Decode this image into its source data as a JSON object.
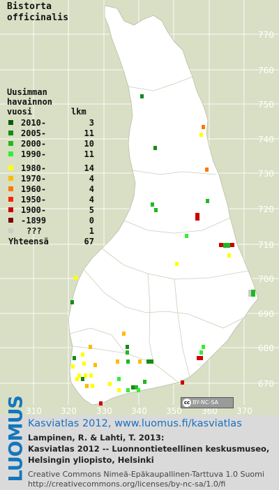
{
  "title": [
    "Bistorta",
    "officinalis"
  ],
  "legend": {
    "header": [
      "Uusimman",
      "havainnon"
    ],
    "col_year": "vuosi",
    "col_count": "lkm",
    "rows": [
      {
        "label": "2010-",
        "count": "3",
        "color": "#0a5c0a"
      },
      {
        "label": "2005-",
        "count": "11",
        "color": "#178a17"
      },
      {
        "label": "2000-",
        "count": "10",
        "color": "#22b822"
      },
      {
        "label": "1990-",
        "count": "11",
        "color": "#33ee33"
      },
      {
        "label": "1980-",
        "count": "14",
        "color": "#ffff00"
      },
      {
        "label": "1970-",
        "count": "4",
        "color": "#ffbb00"
      },
      {
        "label": "1960-",
        "count": "4",
        "color": "#ff7700"
      },
      {
        "label": "1950-",
        "count": "4",
        "color": "#ff2200"
      },
      {
        "label": "1900-",
        "count": "5",
        "color": "#cc0000"
      },
      {
        "label": "-1899",
        "count": "0",
        "color": "#7a0000"
      },
      {
        "label": "???",
        "count": "1",
        "color": "#cccccc"
      }
    ],
    "total_label": "Yhteensä",
    "total_count": "67"
  },
  "axes": {
    "x_ticks": [
      "310",
      "320",
      "330",
      "340",
      "350",
      "360",
      "370"
    ],
    "y_ticks": [
      "770",
      "760",
      "750",
      "740",
      "730",
      "720",
      "710",
      "700",
      "690",
      "680",
      "670"
    ]
  },
  "license_badge": {
    "icon": "cc-icon",
    "text": "BY-NC-SA"
  },
  "footer": {
    "logo_text": "LUOMUS",
    "line1": "Kasviatlas 2012, www.luomus.fi/kasviatlas",
    "line2": "Lampinen, R. & Lahti, T. 2013:",
    "line3": "Kasviatlas 2012 -- Luonnontieteellinen keskusmuseo,",
    "line4": "Helsingin yliopisto, Helsinki",
    "line5": "Creative Commons Nimeä-Epäkaupallinen-Tarttuva 1.0 Suomi",
    "line6": "http://creativecommons.org/licenses/by-nc-sa/1.0/fi"
  },
  "colors": {
    "land": "#ffffff",
    "background": "#d8dfc4",
    "grid": "#ffffff",
    "logo": "#1277bd"
  }
}
